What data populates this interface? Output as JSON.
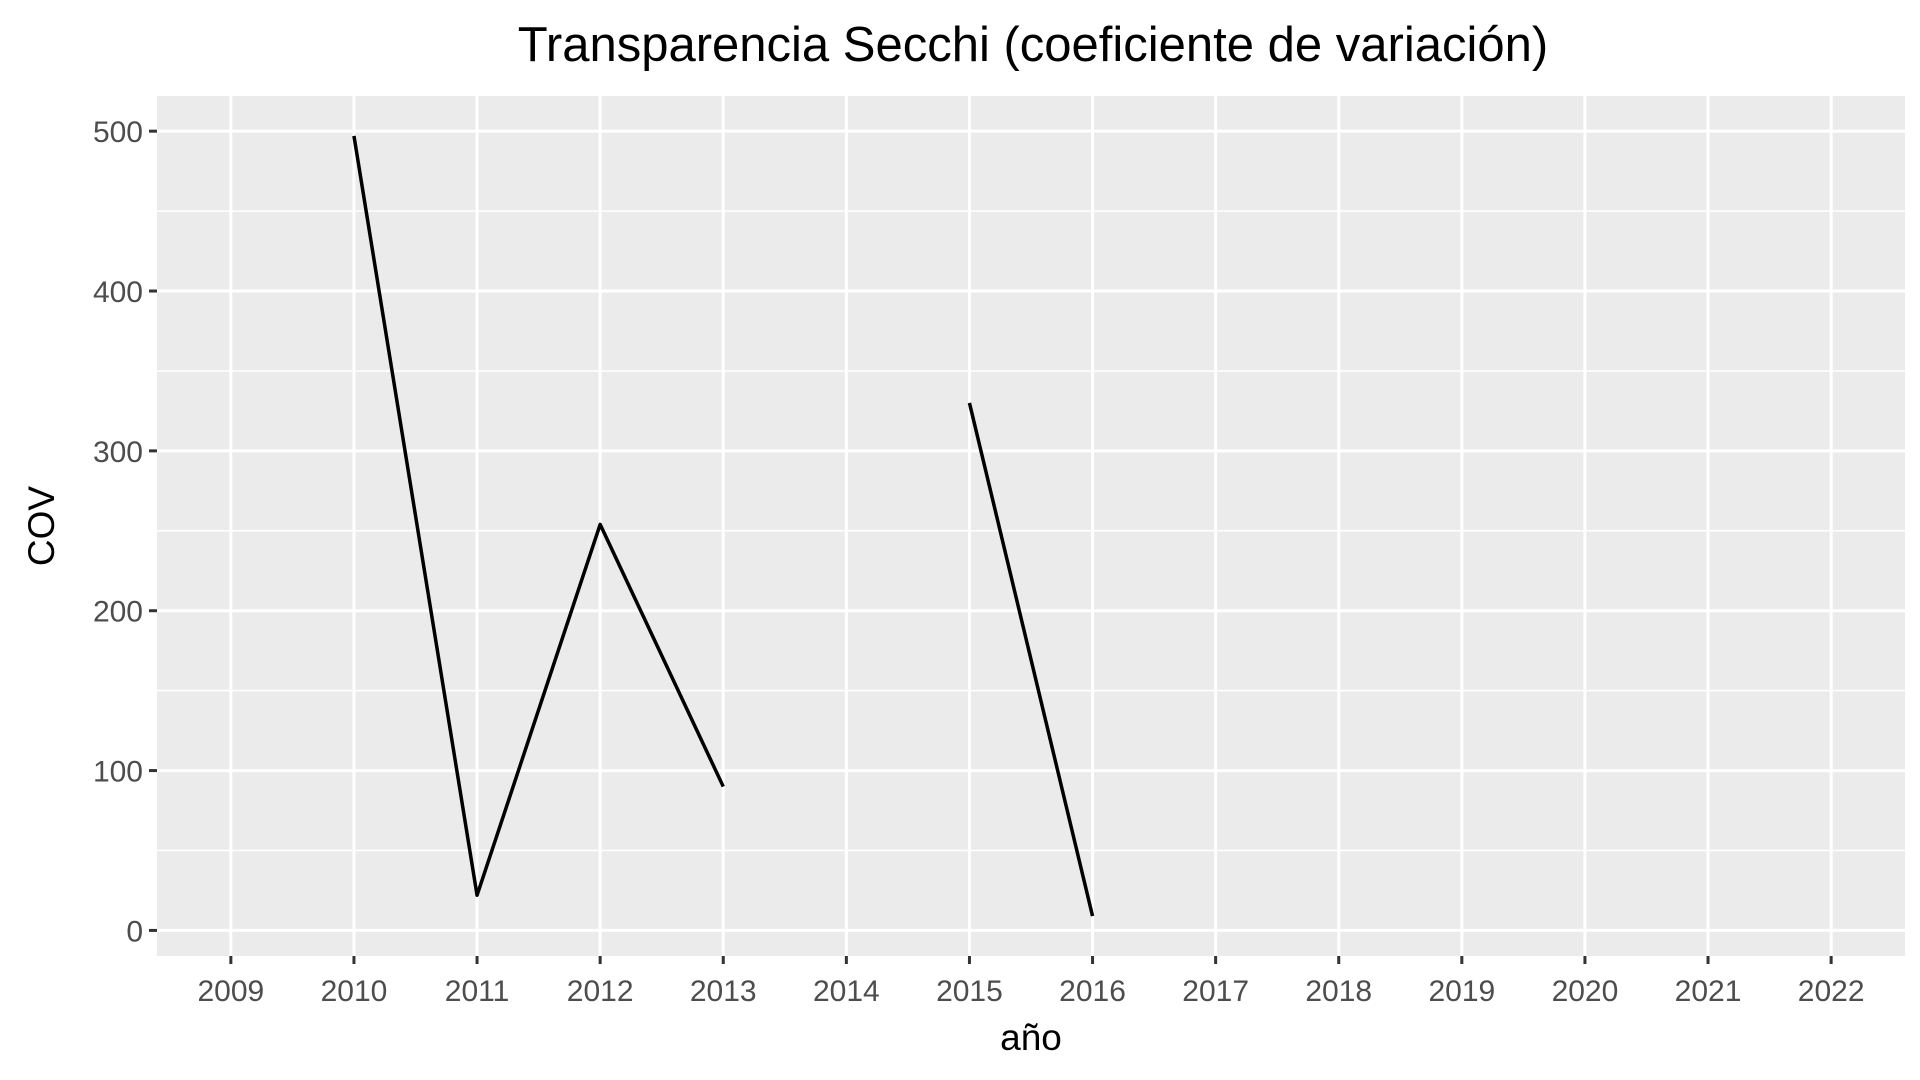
{
  "chart_data": {
    "type": "line",
    "title": "Transparencia Secchi (coeficiente de variación)",
    "xlabel": "año",
    "ylabel": "COV",
    "x": [
      2009,
      2010,
      2011,
      2012,
      2013,
      2014,
      2015,
      2016,
      2017,
      2018,
      2019,
      2020,
      2021,
      2022
    ],
    "x_tick_labels": [
      "2009",
      "2010",
      "2011",
      "2012",
      "2013",
      "2014",
      "2015",
      "2016",
      "2017",
      "2018",
      "2019",
      "2020",
      "2021",
      "2022"
    ],
    "y_ticks": [
      0,
      100,
      200,
      300,
      400,
      500
    ],
    "y_tick_labels": [
      "0",
      "100",
      "200",
      "300",
      "400",
      "500"
    ],
    "xlim": [
      2008.4,
      2022.6
    ],
    "ylim": [
      -16,
      522
    ],
    "grid": true,
    "legend": "none",
    "series": [
      {
        "values": [
          null,
          497,
          22,
          254,
          90,
          null,
          330,
          9,
          null,
          null,
          null,
          null,
          null,
          null
        ],
        "color": "#000000"
      }
    ],
    "colors": {
      "panel_background": "#ebebeb",
      "grid": "#ffffff",
      "tick_text": "#4d4d4d",
      "tick_marks": "#333333",
      "line": "#000000"
    }
  }
}
